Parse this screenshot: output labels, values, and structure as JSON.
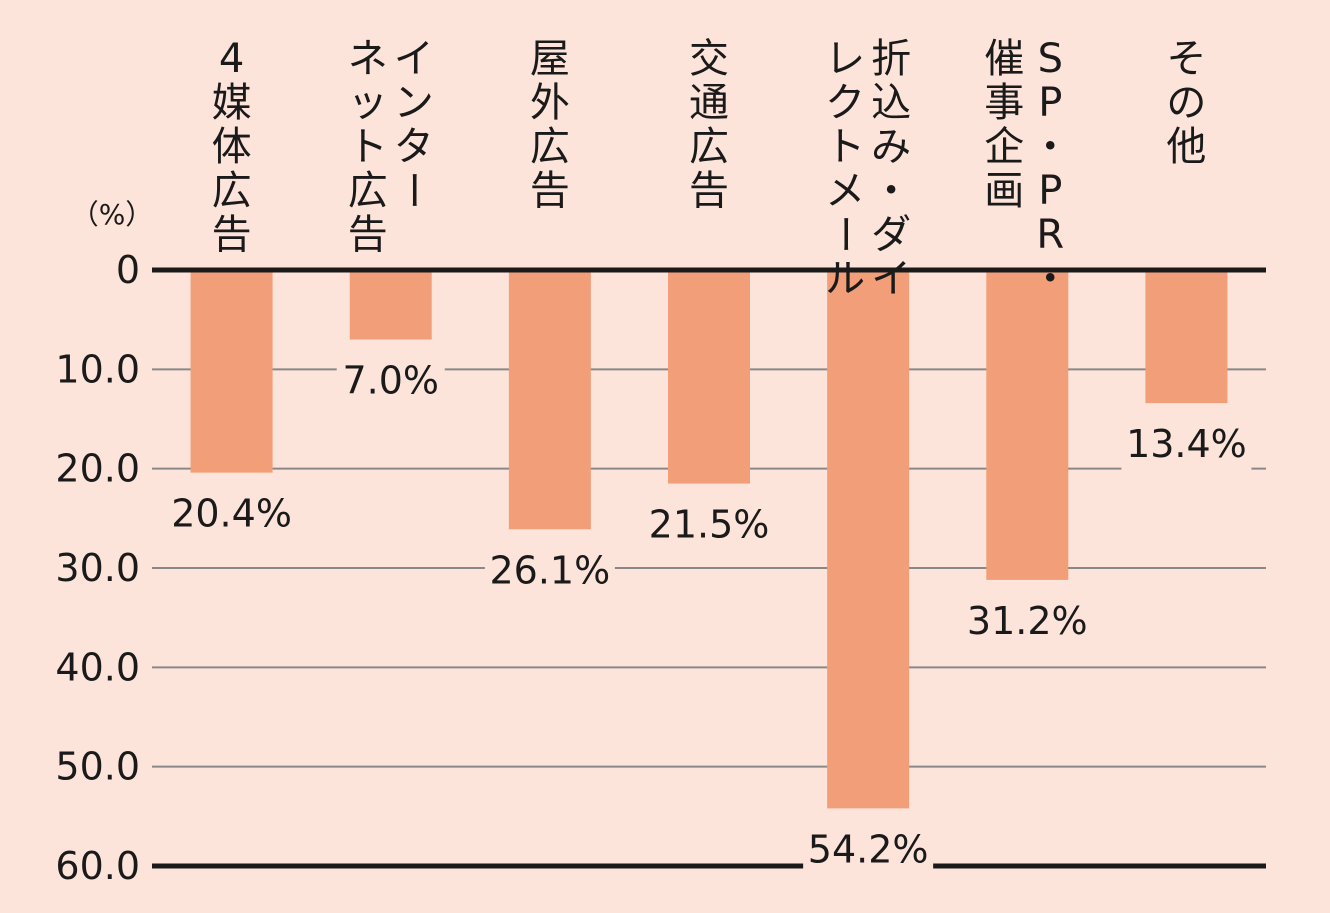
{
  "chart_data": {
    "type": "bar",
    "orientation": "vertical-downward",
    "unit": "（%）",
    "categories": [
      [
        "4",
        "媒",
        "体",
        "広",
        "告"
      ],
      [
        "イ",
        "ン",
        "タ",
        "ー",
        "ネ",
        "ッ",
        "ト",
        "広",
        "告"
      ],
      [
        "屋",
        "外",
        "広",
        "告"
      ],
      [
        "交",
        "通",
        "広",
        "告"
      ],
      [
        "折",
        "込",
        "み",
        "・",
        "ダ",
        "イ",
        "レ",
        "ク",
        "ト",
        "メ",
        "ー",
        "ル"
      ],
      [
        "S",
        "P",
        "・",
        "P",
        "R",
        "・",
        "催",
        "事",
        "企",
        "画"
      ],
      [
        "そ",
        "の",
        "他"
      ]
    ],
    "category_columns": [
      [
        [
          "4",
          "媒",
          "体",
          "広",
          "告"
        ]
      ],
      [
        [
          "イ",
          "ン",
          "タ",
          "ー"
        ],
        [
          "ネ",
          "ッ",
          "ト",
          "広",
          "告"
        ]
      ],
      [
        [
          "屋",
          "外",
          "広",
          "告"
        ]
      ],
      [
        [
          "交",
          "通",
          "広",
          "告"
        ]
      ],
      [
        [
          "折",
          "込",
          "み",
          "・",
          "ダ",
          "イ"
        ],
        [
          "レ",
          "ク",
          "ト",
          "メ",
          "ー",
          "ル"
        ]
      ],
      [
        [
          "S",
          "P",
          "・",
          "P",
          "R",
          "・"
        ],
        [
          "催",
          "事",
          "企",
          "画"
        ]
      ],
      [
        [
          "そ",
          "の",
          "他"
        ]
      ]
    ],
    "values": [
      20.4,
      7.0,
      26.1,
      21.5,
      54.2,
      31.2,
      13.4
    ],
    "data_labels": [
      "20.4%",
      "7.0%",
      "26.1%",
      "21.5%",
      "54.2%",
      "31.2%",
      "13.4%"
    ],
    "yticks": [
      "0",
      "10.0",
      "20.0",
      "30.0",
      "40.0",
      "50.0",
      "60.0"
    ],
    "ylim": [
      0,
      60
    ],
    "grid": true,
    "colors": {
      "bar": "#f29e79",
      "background": "#fde4da",
      "grid": "#888888",
      "axis": "#1a1a1a"
    }
  }
}
